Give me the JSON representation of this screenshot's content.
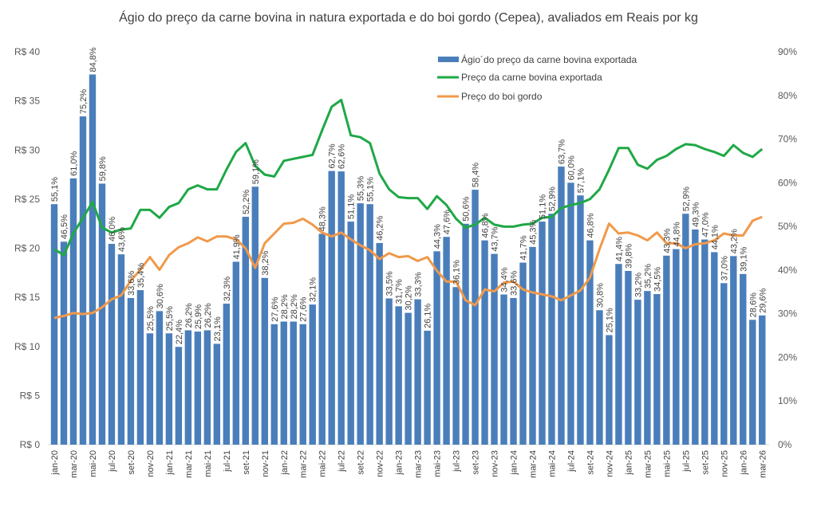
{
  "chart_data": {
    "type": "bar+line",
    "title": "Ágio do preço da carne bovina in natura exportada e do boi gordo (Cepea), avaliados em Reais por kg",
    "left_axis": {
      "ticks": [
        "R$ 0",
        "R$ 5",
        "R$ 10",
        "R$ 15",
        "R$ 20",
        "R$ 25",
        "R$ 30",
        "R$ 35",
        "R$ 40"
      ],
      "range": [
        0,
        40
      ]
    },
    "right_axis": {
      "ticks": [
        "0%",
        "10%",
        "20%",
        "30%",
        "40%",
        "50%",
        "60%",
        "70%",
        "80%",
        "90%"
      ],
      "range": [
        0,
        90
      ]
    },
    "grid": false,
    "legend_position": "top-center-right",
    "x_tick_labels": [
      "jan-20",
      "mar-20",
      "mai-20",
      "jul-20",
      "set-20",
      "nov-20",
      "jan-21",
      "mar-21",
      "mai-21",
      "jul-21",
      "set-21",
      "nov-21",
      "jan-22",
      "mar-22",
      "mai-22",
      "jul-22",
      "set-22",
      "nov-22",
      "jan-23",
      "mar-23",
      "mai-23",
      "jul-23",
      "set-23",
      "nov-23",
      "jan-24",
      "mar-24",
      "mai-24",
      "jul-24",
      "set-24",
      "nov-24",
      "jan-25",
      "mar-25",
      "mai-25",
      "jul-25",
      "set-25",
      "nov-25",
      "jan-26",
      "mar-26"
    ],
    "series": [
      {
        "name": "Ágio´do preço da carne bovina exportada",
        "type": "bar",
        "axis": "right",
        "color": "#4a7ebb",
        "values": [
          55.1,
          46.5,
          61.0,
          75.2,
          84.8,
          59.8,
          46.0,
          43.6,
          33.6,
          35.4,
          25.5,
          30.6,
          25.5,
          22.4,
          26.2,
          25.9,
          26.2,
          23.1,
          32.3,
          41.9,
          52.2,
          59.1,
          38.2,
          27.6,
          28.2,
          28.2,
          27.6,
          32.1,
          48.3,
          62.7,
          62.6,
          51.1,
          55.3,
          55.1,
          46.2,
          33.5,
          31.7,
          30.2,
          33.3,
          26.1,
          44.3,
          47.6,
          36.1,
          50.6,
          58.4,
          46.8,
          43.7,
          34.4,
          33.6,
          41.7,
          45.3,
          51.1,
          52.9,
          63.7,
          60.0,
          57.1,
          46.8,
          30.8,
          25.1,
          41.4,
          39.8,
          33.2,
          35.2,
          34.5,
          43.3,
          44.8,
          52.9,
          49.3,
          47.0,
          44.1,
          37.0,
          43.2,
          39.1,
          28.6,
          29.6
        ],
        "labels": [
          "55,1%",
          "46,5%",
          "61,0%",
          "75,2%",
          "84,8%",
          "59,8%",
          "46,0%",
          "43,6%",
          "33,6%",
          "35,4%",
          "25,5%",
          "30,6%",
          "25,5%",
          "22,4%",
          "26,2%",
          "25,9%",
          "26,2%",
          "23,1%",
          "32,3%",
          "41,9%",
          "52,2%",
          "59,1%",
          "38,2%",
          "27,6%",
          "28,2%",
          "28,2%",
          "27,6%",
          "32,1%",
          "48,3%",
          "62,7%",
          "62,6%",
          "51,1%",
          "55,3%",
          "55,1%",
          "46,2%",
          "33,5%",
          "31,7%",
          "30,2%",
          "33,3%",
          "26,1%",
          "44,3%",
          "47,6%",
          "36,1%",
          "50,6%",
          "58,4%",
          "46,8%",
          "43,7%",
          "34,4%",
          "33,6%",
          "41,7%",
          "45,3%",
          "51,1%",
          "52,9%",
          "63,7%",
          "60,0%",
          "57,1%",
          "46,8%",
          "30,8%",
          "25,1%",
          "41,4%",
          "39,8%",
          "33,2%",
          "35,2%",
          "34,5%",
          "43,3%",
          "44,8%",
          "52,9%",
          "49,3%",
          "47,0%",
          "44,1%",
          "37,0%",
          "43,2%",
          "39,1%",
          "28,6%",
          "29,6%"
        ]
      },
      {
        "name": "Preço da carne bovina exportada",
        "type": "line",
        "axis": "left",
        "color": "#1fa846",
        "values": [
          19.9,
          19.3,
          21.5,
          23.1,
          24.7,
          22.1,
          21.6,
          21.9,
          22.0,
          23.9,
          23.9,
          23.1,
          24.2,
          24.6,
          26.0,
          26.4,
          26.0,
          26.0,
          28.0,
          29.8,
          30.7,
          28.4,
          27.5,
          27.3,
          28.9,
          29.1,
          29.3,
          29.5,
          32.0,
          34.4,
          35.1,
          31.5,
          31.3,
          30.7,
          27.6,
          26.0,
          25.2,
          25.1,
          25.1,
          24.0,
          25.3,
          24.4,
          23.0,
          22.1,
          22.4,
          23.1,
          22.4,
          22.2,
          22.2,
          22.4,
          22.5,
          23.1,
          23.2,
          24.1,
          24.4,
          24.6,
          25.0,
          26.0,
          28.0,
          30.2,
          30.2,
          28.5,
          28.1,
          29.0,
          29.4,
          30.1,
          30.6,
          30.5,
          30.1,
          29.8,
          29.4,
          30.5,
          29.7,
          29.3,
          30.1
        ]
      },
      {
        "name": "Preço do boi gordo",
        "type": "line",
        "axis": "left",
        "color": "#f0994a",
        "values": [
          12.9,
          13.1,
          13.4,
          13.3,
          13.4,
          14.0,
          14.8,
          15.2,
          16.7,
          17.8,
          19.1,
          17.8,
          19.3,
          20.1,
          20.5,
          21.1,
          20.7,
          21.2,
          21.2,
          20.9,
          20.0,
          18.0,
          20.5,
          21.5,
          22.5,
          22.6,
          23.0,
          22.4,
          21.6,
          21.2,
          21.6,
          20.9,
          20.3,
          19.8,
          18.9,
          19.5,
          19.1,
          19.2,
          18.7,
          19.1,
          17.7,
          16.6,
          16.6,
          14.7,
          14.2,
          15.8,
          15.6,
          16.5,
          16.6,
          15.8,
          15.5,
          15.3,
          15.1,
          14.7,
          15.2,
          15.7,
          17.0,
          19.9,
          22.5,
          21.5,
          21.6,
          21.3,
          20.8,
          21.6,
          20.5,
          20.5,
          20.0,
          20.4,
          20.5,
          20.8,
          21.5,
          21.3,
          21.3,
          22.8,
          23.2
        ]
      }
    ]
  }
}
